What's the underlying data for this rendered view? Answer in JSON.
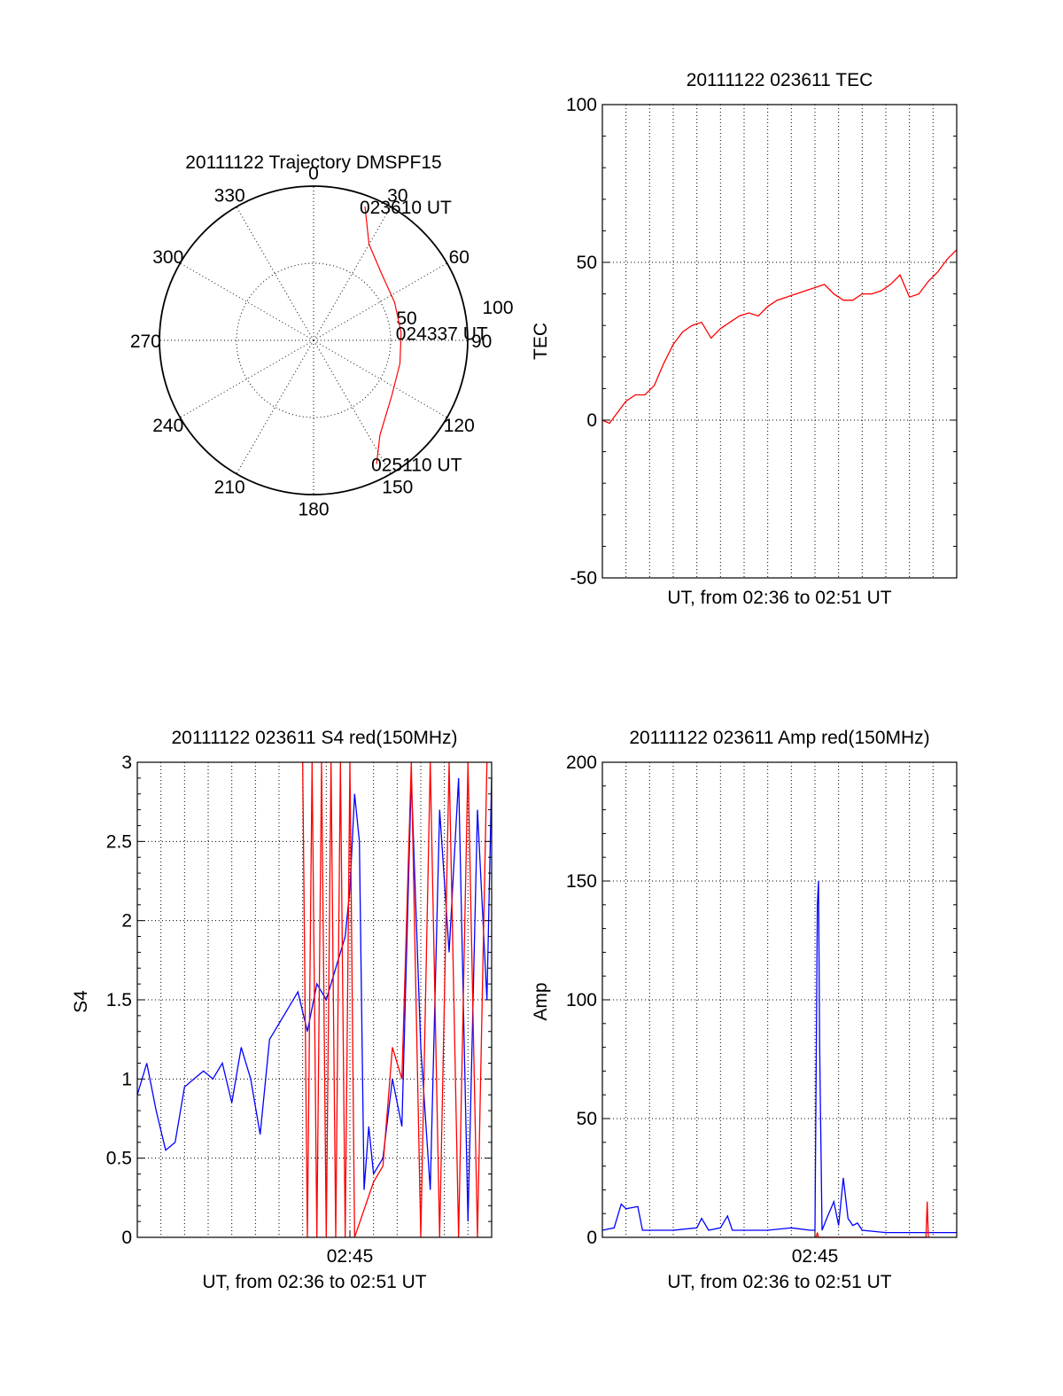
{
  "chart_data": [
    {
      "type": "polar",
      "title": "20111122 Trajectory DMSPF15",
      "azimuth_labels": [
        "0",
        "30",
        "60",
        "90",
        "120",
        "150",
        "180",
        "210",
        "240",
        "270",
        "300",
        "330"
      ],
      "radial_labels": [
        "50",
        "100"
      ],
      "radial_max": 100,
      "grid": true,
      "series": [
        {
          "color": "#ff0000",
          "points": [
            {
              "az": 21,
              "r": 93
            },
            {
              "az": 30,
              "r": 72
            },
            {
              "az": 45,
              "r": 62
            },
            {
              "az": 65,
              "r": 58
            },
            {
              "az": 85,
              "r": 57
            },
            {
              "az": 105,
              "r": 58
            },
            {
              "az": 125,
              "r": 62
            },
            {
              "az": 145,
              "r": 75
            },
            {
              "az": 153,
              "r": 90
            }
          ],
          "time_labels": [
            {
              "text": "023610 UT",
              "az": 21,
              "r": 93
            },
            {
              "text": "024337 UT",
              "az": 85,
              "r": 57
            },
            {
              "text": "025110 UT",
              "az": 153,
              "r": 90
            }
          ]
        }
      ]
    },
    {
      "type": "line",
      "title": "20111122 023611 TEC",
      "xlabel": "UT, from 02:36 to 02:51 UT",
      "ylabel": "TEC",
      "xlim": [
        0,
        15
      ],
      "ylim": [
        -50,
        100
      ],
      "yticks": [
        -50,
        0,
        50,
        100
      ],
      "xticks": [],
      "grid": true,
      "series": [
        {
          "color": "#ff0000",
          "x": [
            0,
            0.3,
            0.6,
            1.0,
            1.4,
            1.8,
            2.2,
            2.6,
            3.0,
            3.4,
            3.8,
            4.2,
            4.6,
            5.0,
            5.4,
            5.8,
            6.2,
            6.6,
            7.0,
            7.4,
            7.8,
            8.2,
            8.6,
            9.0,
            9.4,
            9.8,
            10.2,
            10.6,
            11.0,
            11.4,
            11.8,
            12.2,
            12.6,
            13.0,
            13.4,
            13.8,
            14.2,
            14.6,
            15.0
          ],
          "values": [
            0,
            -1,
            2,
            6,
            8,
            8,
            11,
            18,
            24,
            28,
            30,
            31,
            26,
            29,
            31,
            33,
            34,
            33,
            36,
            38,
            39,
            40,
            41,
            42,
            43,
            40,
            38,
            38,
            40,
            40,
            41,
            43,
            46,
            39,
            40,
            44,
            47,
            51,
            54
          ]
        }
      ]
    },
    {
      "type": "line",
      "title": "20111122 023611 S4 red(150MHz)",
      "xlabel": "UT, from 02:36 to 02:51 UT",
      "ylabel": "S4",
      "xlim": [
        0,
        15
      ],
      "ylim": [
        0,
        3
      ],
      "yticks": [
        0,
        0.5,
        1,
        1.5,
        2,
        2.5,
        3
      ],
      "xticks": [
        {
          "x": 9,
          "label": "02:45"
        }
      ],
      "grid": true,
      "series": [
        {
          "color": "#0000ff",
          "x": [
            0,
            0.4,
            0.8,
            1.2,
            1.6,
            2.0,
            2.4,
            2.8,
            3.2,
            3.6,
            4.0,
            4.4,
            4.8,
            5.2,
            5.6,
            6.0,
            6.4,
            6.8,
            7.2,
            7.6,
            8.0,
            8.4,
            8.8,
            9.0,
            9.2,
            9.4,
            9.6,
            9.8,
            10.0,
            10.4,
            10.8,
            11.2,
            11.6,
            12.0,
            12.4,
            12.8,
            13.2,
            13.6,
            14.0,
            14.4,
            14.8,
            15.0
          ],
          "values": [
            0.9,
            1.1,
            0.8,
            0.55,
            0.6,
            0.95,
            1.0,
            1.05,
            1.0,
            1.1,
            0.85,
            1.2,
            1.0,
            0.65,
            1.25,
            1.35,
            1.45,
            1.55,
            1.3,
            1.6,
            1.5,
            1.7,
            1.9,
            2.2,
            2.8,
            2.5,
            0.3,
            0.7,
            0.4,
            0.5,
            1.0,
            0.7,
            2.9,
            1.2,
            0.3,
            2.7,
            1.8,
            2.9,
            0.1,
            2.7,
            1.5,
            2.9
          ]
        },
        {
          "color": "#ff0000",
          "x": [
            7.0,
            7.2,
            7.4,
            7.6,
            7.8,
            8.0,
            8.2,
            8.4,
            8.6,
            8.8,
            9.0,
            9.2,
            10.0,
            10.4,
            10.8,
            11.2,
            11.6,
            12.0,
            12.4,
            12.8,
            13.2,
            13.6,
            14.0,
            14.4,
            14.8
          ],
          "values": [
            3.0,
            0.0,
            3.0,
            0.0,
            3.0,
            0.0,
            3.0,
            0.0,
            3.0,
            0.0,
            3.0,
            0.0,
            0.35,
            0.45,
            1.2,
            1.0,
            3.0,
            0.0,
            3.0,
            0.0,
            3.0,
            0.0,
            3.0,
            0.0,
            3.0
          ]
        }
      ]
    },
    {
      "type": "line",
      "title": "20111122 023611 Amp red(150MHz)",
      "xlabel": "UT, from 02:36 to 02:51 UT",
      "ylabel": "Amp",
      "xlim": [
        0,
        15
      ],
      "ylim": [
        0,
        200
      ],
      "yticks": [
        0,
        50,
        100,
        150,
        200
      ],
      "xticks": [
        {
          "x": 9,
          "label": "02:45"
        }
      ],
      "grid": true,
      "series": [
        {
          "color": "#0000ff",
          "x": [
            0,
            0.5,
            0.8,
            1.0,
            1.5,
            1.7,
            2.0,
            3.0,
            4.0,
            4.2,
            4.5,
            5.0,
            5.3,
            5.5,
            6.0,
            7.0,
            8.0,
            8.8,
            9.0,
            9.1,
            9.15,
            9.2,
            9.3,
            9.5,
            9.8,
            10.0,
            10.2,
            10.4,
            10.6,
            10.8,
            11.0,
            12.0,
            13.0,
            14.0,
            15.0
          ],
          "values": [
            3,
            4,
            14,
            12,
            13,
            3,
            3,
            3,
            4,
            8,
            3,
            4,
            9,
            3,
            3,
            3,
            4,
            3,
            3,
            140,
            150,
            80,
            3,
            8,
            15,
            5,
            25,
            8,
            5,
            6,
            3,
            2,
            2,
            2,
            2
          ]
        },
        {
          "color": "#ff0000",
          "x": [
            9.05,
            9.1,
            9.15,
            9.3,
            13.7,
            13.75,
            13.8
          ],
          "values": [
            0,
            2,
            0,
            0,
            0,
            15,
            0
          ]
        }
      ]
    }
  ]
}
